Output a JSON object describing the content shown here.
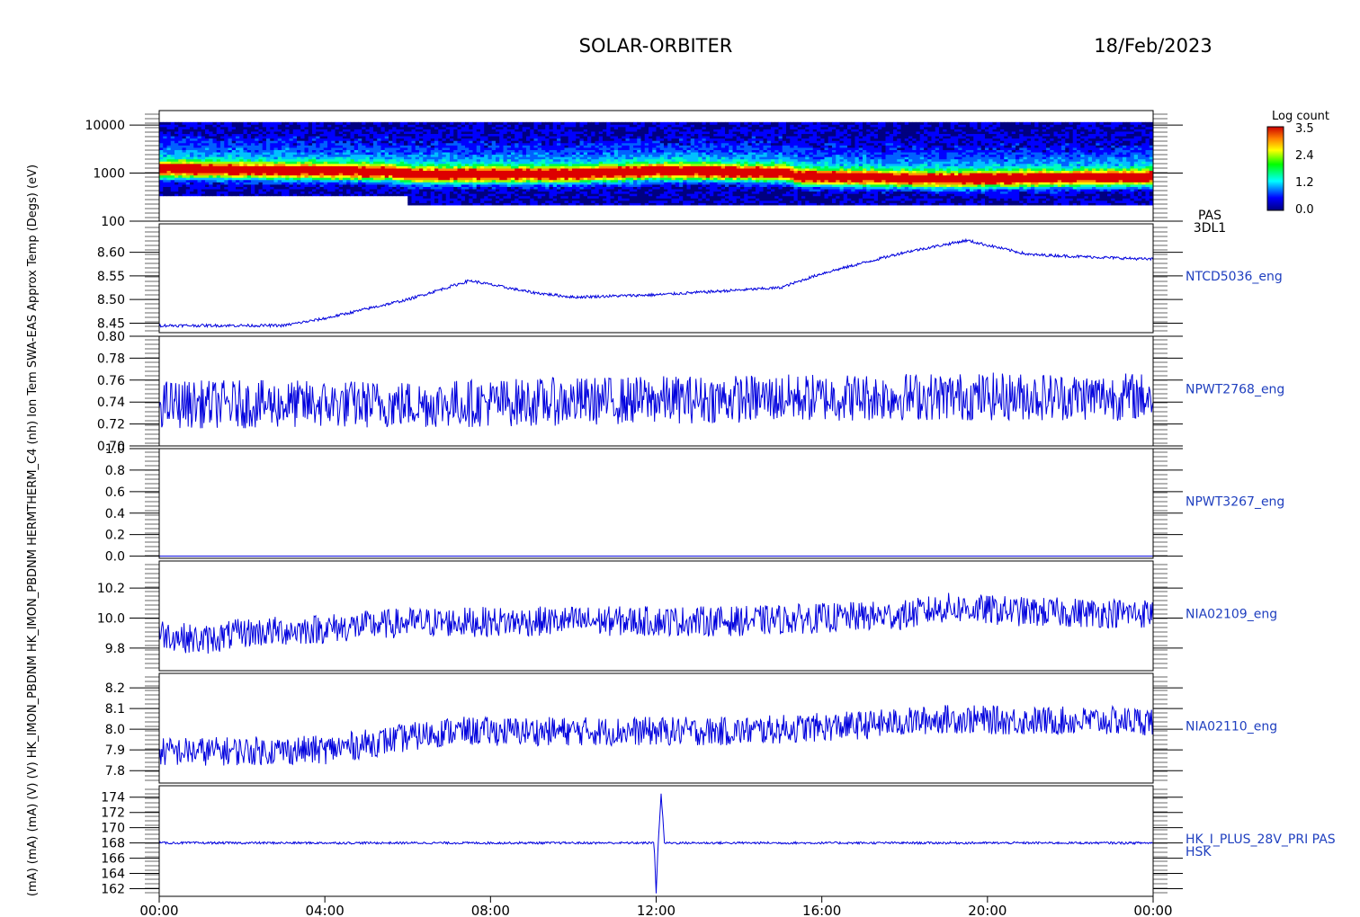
{
  "header": {
    "mission": "SOLAR-ORBITER",
    "date": "18/Feb/2023"
  },
  "colorbar": {
    "title": "Log count",
    "ticks": [
      "3.5",
      "2.4",
      "1.2",
      "0.0"
    ]
  },
  "x_ticks": [
    "00:00",
    "04:00",
    "08:00",
    "12:00",
    "16:00",
    "20:00",
    "00:00"
  ],
  "y_side_label": "(mA) (mA) (mA) (V) (V) HK_IMON_PBDNM HK_IMON_PBDNM HERMTHERM_C4 (nh) Ion Tem SWA-EAS Approx Temp (Degs) (eV)",
  "colors": {
    "line": "#0000dd",
    "label": "#1f3fbf",
    "axis": "#000000"
  },
  "chart_data": [
    {
      "type": "heatmap",
      "id": "pas-3dl1",
      "panel_label": [
        "PAS",
        "3DL1"
      ],
      "y_scale": "log",
      "y_ticks": [
        "10000",
        "1000",
        "100"
      ],
      "ylim": [
        100,
        20000
      ],
      "xlim": [
        "00:00",
        "24:00"
      ],
      "z_label": "Log count",
      "z_range": [
        0.0,
        3.5
      ],
      "peak_energy_profile": [
        {
          "t": 0.0,
          "e": 1150
        },
        {
          "t": 5.5,
          "e": 1000
        },
        {
          "t": 6.0,
          "e": 880
        },
        {
          "t": 10.0,
          "e": 900
        },
        {
          "t": 12.0,
          "e": 1050
        },
        {
          "t": 15.2,
          "e": 950
        },
        {
          "t": 15.3,
          "e": 800
        },
        {
          "t": 19.0,
          "e": 700
        },
        {
          "t": 24.0,
          "e": 780
        }
      ]
    },
    {
      "type": "line",
      "id": "ntcd5036",
      "panel_label": [
        "NTCD5036_eng"
      ],
      "y_ticks": [
        "8.60",
        "8.55",
        "8.50",
        "8.45"
      ],
      "ylim": [
        8.43,
        8.66
      ],
      "noise": 0.003,
      "x": [
        0,
        3,
        4,
        6,
        7.5,
        9,
        10,
        12,
        15,
        16,
        18,
        19.5,
        21,
        24
      ],
      "y": [
        8.445,
        8.445,
        8.46,
        8.5,
        8.54,
        8.515,
        8.505,
        8.51,
        8.525,
        8.555,
        8.6,
        8.625,
        8.595,
        8.585
      ]
    },
    {
      "type": "line",
      "id": "npwt2768",
      "panel_label": [
        "NPWT2768_eng"
      ],
      "y_ticks": [
        "0.80",
        "0.78",
        "0.76",
        "0.74",
        "0.72",
        "0.70"
      ],
      "ylim": [
        0.7,
        0.8
      ],
      "noise": 0.022,
      "x": [
        0,
        6,
        12,
        18,
        24
      ],
      "y": [
        0.738,
        0.738,
        0.742,
        0.745,
        0.745
      ]
    },
    {
      "type": "line",
      "id": "npwt3267",
      "panel_label": [
        "NPWT3267_eng"
      ],
      "y_ticks": [
        "1.0",
        "0.8",
        "0.6",
        "0.4",
        "0.2",
        "0.0"
      ],
      "ylim": [
        -0.02,
        1.0
      ],
      "noise": 0.0,
      "x": [
        0,
        24
      ],
      "y": [
        0.0,
        0.0
      ]
    },
    {
      "type": "line",
      "id": "nia02109",
      "panel_label": [
        "NIA02109_eng"
      ],
      "y_ticks": [
        "10.2",
        "10.0",
        "9.8"
      ],
      "ylim": [
        9.65,
        10.38
      ],
      "noise": 0.1,
      "x": [
        0,
        1,
        2,
        4,
        6,
        10,
        14,
        18,
        19,
        21,
        24
      ],
      "y": [
        9.9,
        9.85,
        9.9,
        9.93,
        9.97,
        9.98,
        9.98,
        10.02,
        10.07,
        10.04,
        10.03
      ]
    },
    {
      "type": "line",
      "id": "nia02110",
      "panel_label": [
        "NIA02110_eng"
      ],
      "y_ticks": [
        "8.2",
        "8.1",
        "8.0",
        "7.9",
        "7.8"
      ],
      "ylim": [
        7.74,
        8.27
      ],
      "noise": 0.07,
      "x": [
        0,
        4,
        7,
        10,
        14,
        17,
        19,
        21,
        24
      ],
      "y": [
        7.89,
        7.9,
        7.99,
        7.99,
        7.99,
        8.02,
        8.05,
        8.04,
        8.04
      ]
    },
    {
      "type": "line",
      "id": "hk-i-plus-28v",
      "panel_label": [
        "HK_I_PLUS_28V_PRI PAS",
        "HSK"
      ],
      "y_ticks": [
        "174",
        "172",
        "170",
        "168",
        "166",
        "164",
        "162"
      ],
      "ylim": [
        161,
        175.5
      ],
      "noise": 0.15,
      "x": [
        0,
        11.95,
        12.0,
        12.05,
        12.12,
        12.2,
        24
      ],
      "y": [
        168,
        168,
        161.5,
        168,
        174.5,
        168,
        168
      ]
    }
  ]
}
